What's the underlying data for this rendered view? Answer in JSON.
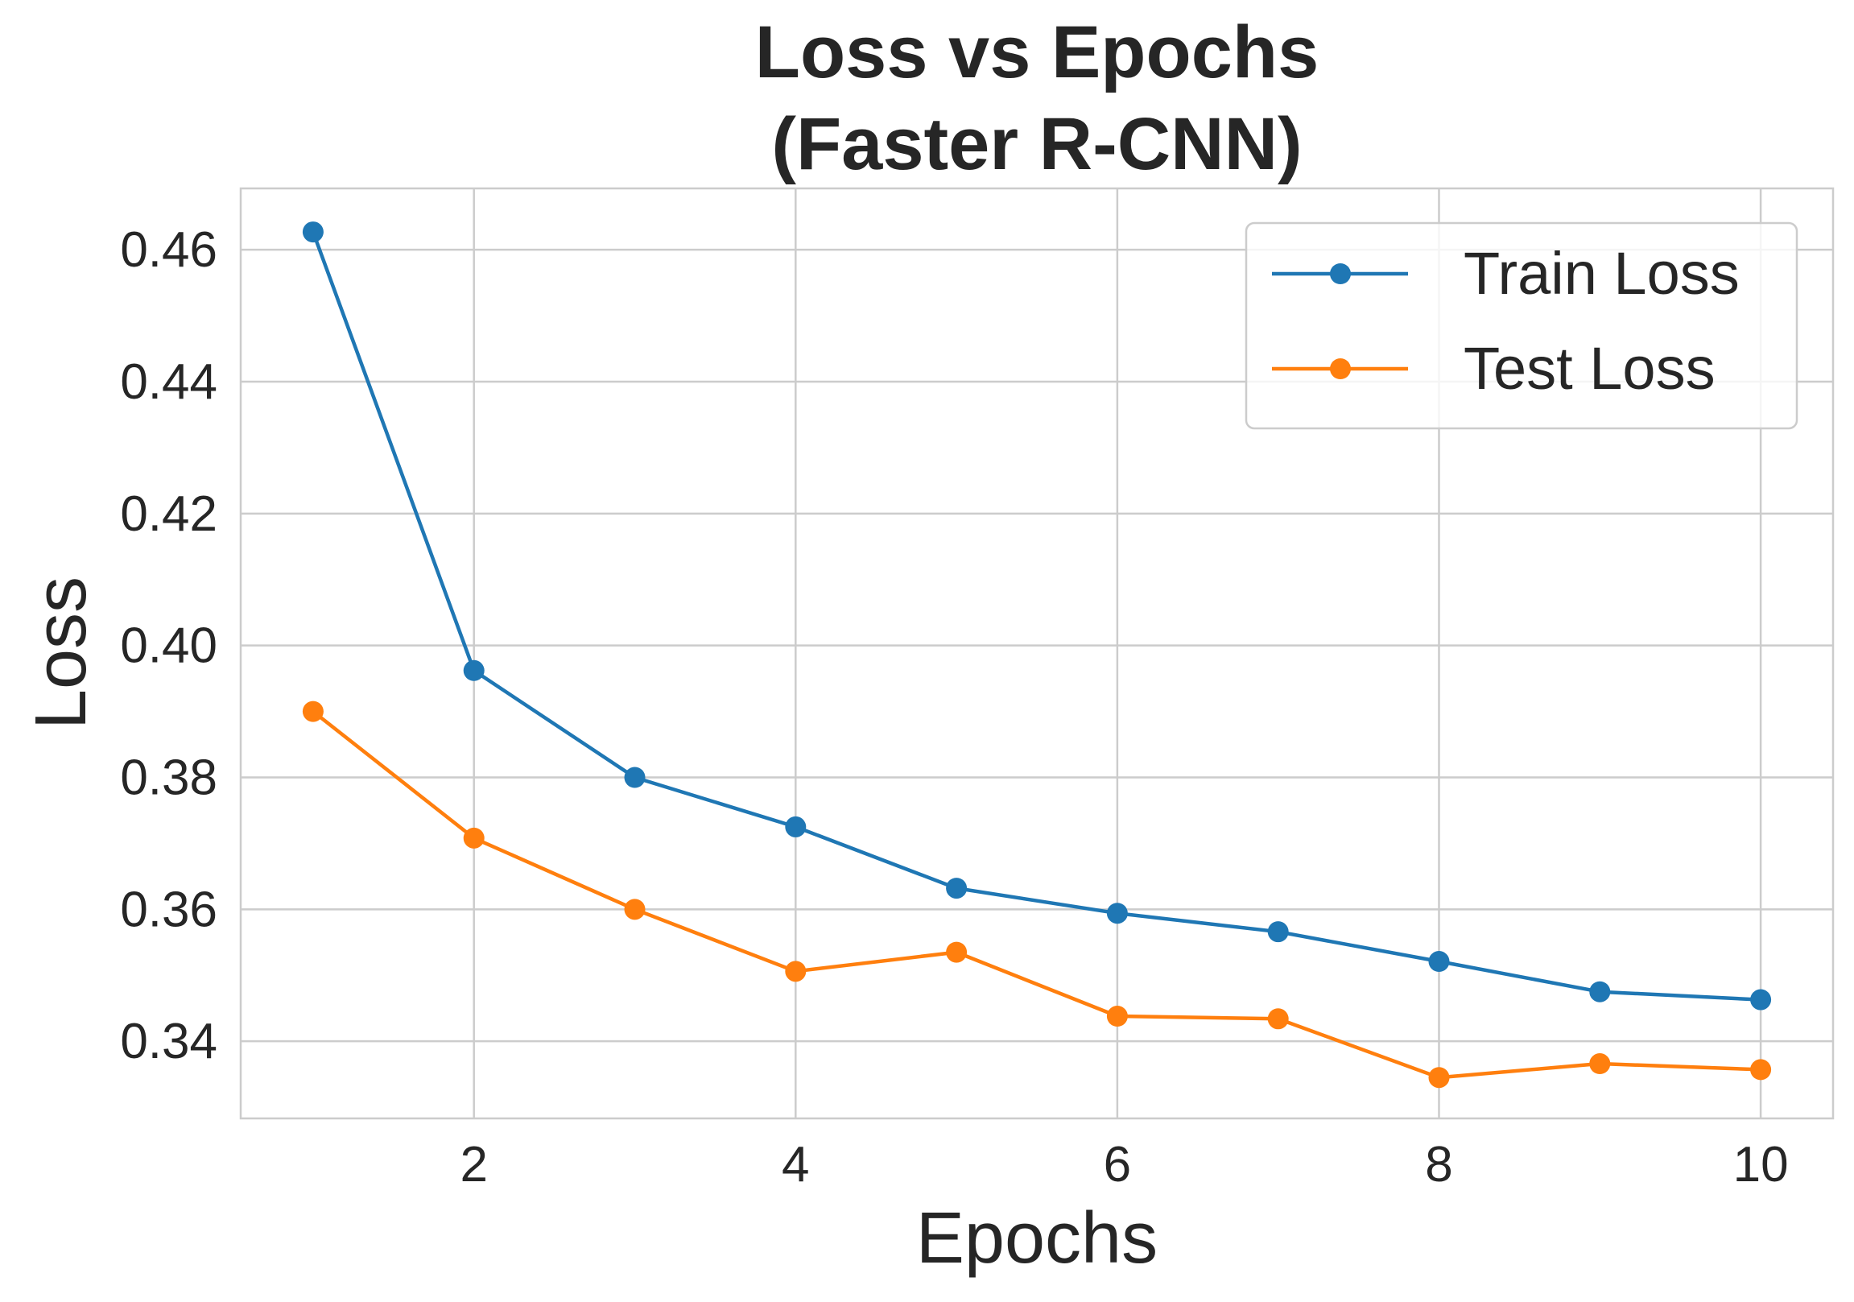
{
  "chart_data": {
    "type": "line",
    "title": "Loss vs Epochs",
    "subtitle": "(Faster R-CNN)",
    "xlabel": "Epochs",
    "ylabel": "Loss",
    "x": [
      1,
      2,
      3,
      4,
      5,
      6,
      7,
      8,
      9,
      10
    ],
    "xticks": [
      2,
      4,
      6,
      8,
      10
    ],
    "xtick_labels": [
      "2",
      "4",
      "6",
      "8",
      "10"
    ],
    "yticks": [
      0.34,
      0.36,
      0.38,
      0.4,
      0.42,
      0.44,
      0.46
    ],
    "ytick_labels": [
      "0.34",
      "0.36",
      "0.38",
      "0.40",
      "0.42",
      "0.44",
      "0.46"
    ],
    "xlim": [
      0.55,
      10.45
    ],
    "ylim": [
      0.3283,
      0.4693
    ],
    "grid": true,
    "legend_position": "top-right",
    "series": [
      {
        "name": "Train Loss",
        "color": "#1f77b4",
        "values": [
          0.4627,
          0.3962,
          0.38,
          0.3725,
          0.3632,
          0.3594,
          0.3566,
          0.3521,
          0.3475,
          0.3463
        ]
      },
      {
        "name": "Test Loss",
        "color": "#ff7f0e",
        "values": [
          0.39,
          0.3708,
          0.36,
          0.3506,
          0.3535,
          0.3438,
          0.3434,
          0.3345,
          0.3366,
          0.3357
        ]
      }
    ]
  }
}
